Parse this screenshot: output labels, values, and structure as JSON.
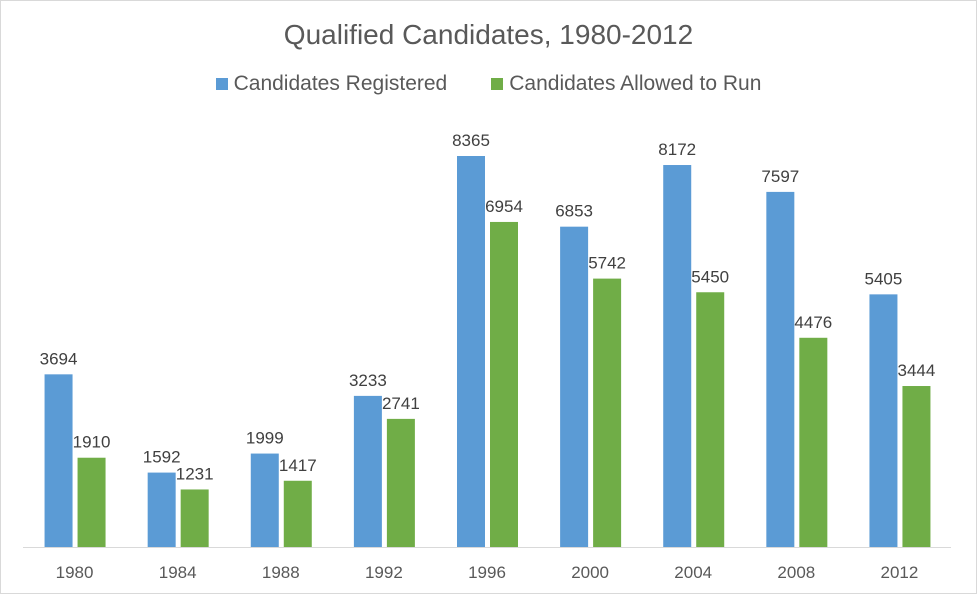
{
  "chart_data": {
    "type": "bar",
    "title": "Qualified Candidates, 1980-2012",
    "xlabel": "",
    "ylabel": "",
    "categories": [
      "1980",
      "1984",
      "1988",
      "1992",
      "1996",
      "2000",
      "2004",
      "2008",
      "2012"
    ],
    "series": [
      {
        "name": "Candidates Registered",
        "color": "#5b9bd5",
        "values": [
          3694,
          1592,
          1999,
          3233,
          8365,
          6853,
          8172,
          7597,
          5405
        ]
      },
      {
        "name": "Candidates Allowed to Run",
        "color": "#70ad47",
        "values": [
          1910,
          1231,
          1417,
          2741,
          6954,
          5742,
          5450,
          4476,
          3444
        ]
      }
    ],
    "ylim": [
      0,
      9000
    ],
    "grid": false,
    "legend_position": "top"
  }
}
